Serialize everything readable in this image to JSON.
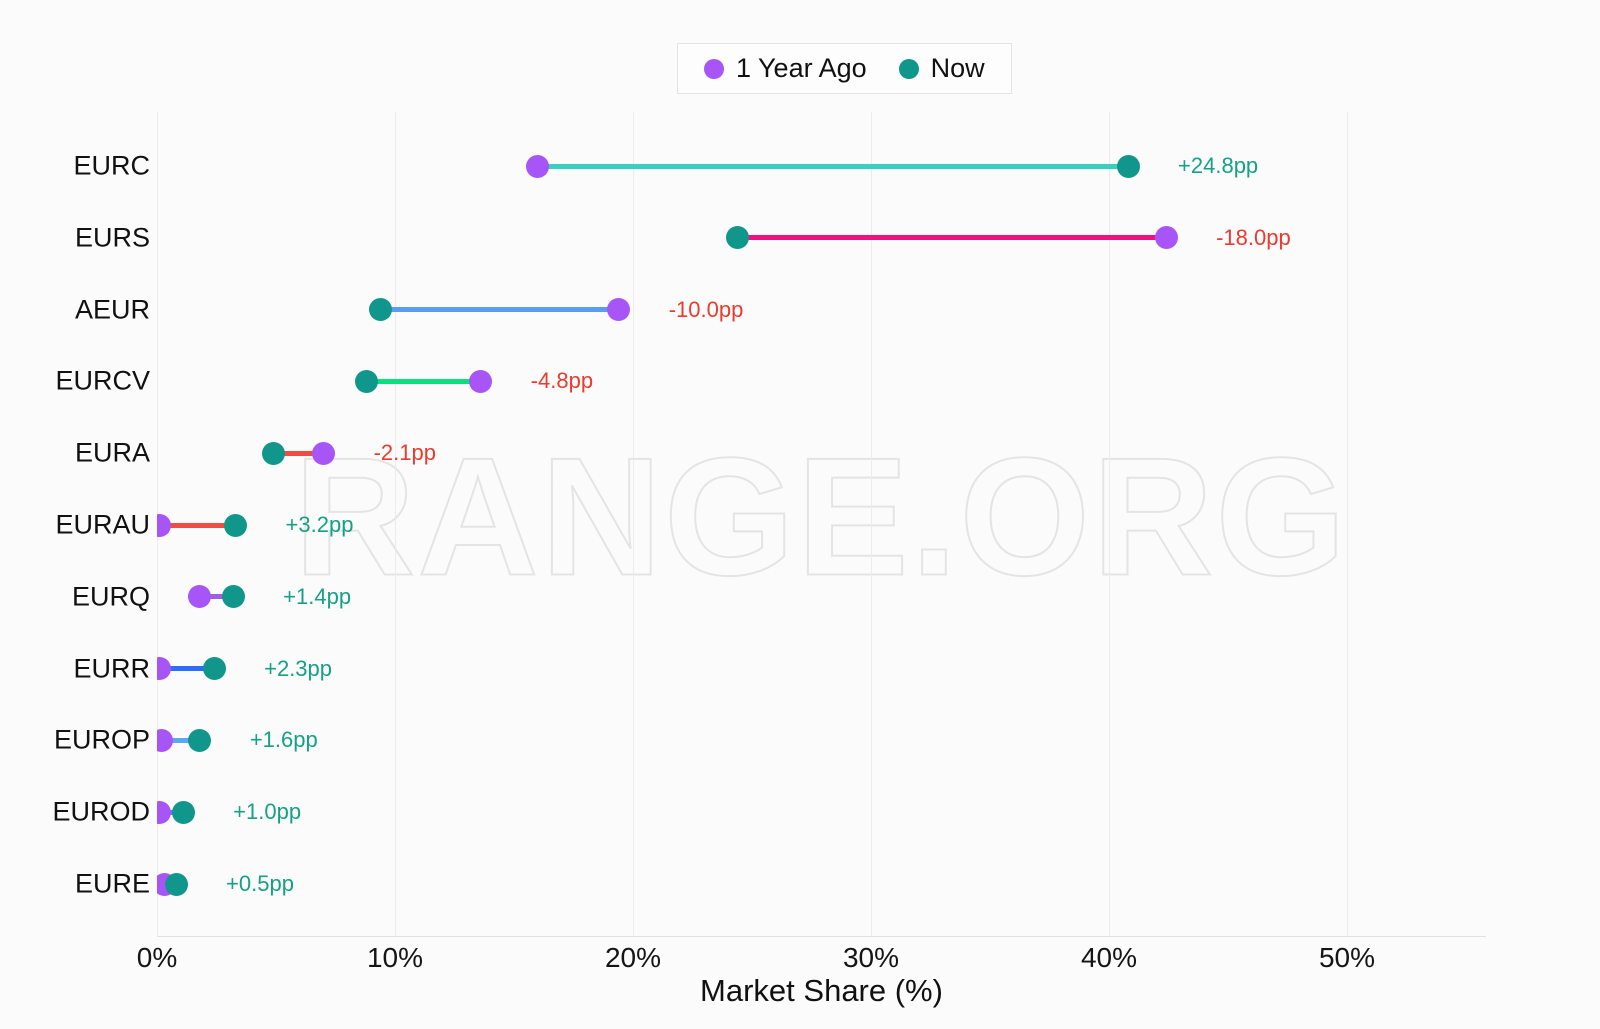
{
  "watermark": "RANGE.ORG",
  "chart_data": {
    "type": "dumbbell",
    "title": "",
    "xlabel": "Market Share (%)",
    "x_ticks": [
      "0%",
      "10%",
      "20%",
      "30%",
      "40%",
      "50%"
    ],
    "x_tick_values": [
      0,
      10,
      20,
      30,
      40,
      50
    ],
    "xlim": [
      0,
      55.8
    ],
    "grid": "vertical",
    "legend_position": "top-center",
    "series": [
      {
        "name": "1 Year Ago",
        "key": "year_ago",
        "color": "#a855f7"
      },
      {
        "name": "Now",
        "key": "now",
        "color": "#10968a"
      }
    ],
    "label_colors": {
      "positive": "#16a085",
      "negative": "#ea3b2e"
    },
    "rows": [
      {
        "label": "EURC",
        "year_ago": 16.0,
        "now": 40.8,
        "change": "+24.8pp",
        "direction": "positive",
        "connector_color": "#38d1c1"
      },
      {
        "label": "EURS",
        "year_ago": 42.4,
        "now": 24.4,
        "change": "-18.0pp",
        "direction": "negative",
        "connector_color": "#f01180"
      },
      {
        "label": "AEUR",
        "year_ago": 19.4,
        "now": 9.4,
        "change": "-10.0pp",
        "direction": "negative",
        "connector_color": "#5b9cf3"
      },
      {
        "label": "EURCV",
        "year_ago": 13.6,
        "now": 8.8,
        "change": "-4.8pp",
        "direction": "negative",
        "connector_color": "#0cdf7d"
      },
      {
        "label": "EURA",
        "year_ago": 7.0,
        "now": 4.9,
        "change": "-2.1pp",
        "direction": "negative",
        "connector_color": "#ef4c45"
      },
      {
        "label": "EURAU",
        "year_ago": 0.1,
        "now": 3.3,
        "change": "+3.2pp",
        "direction": "positive",
        "connector_color": "#ef4c45"
      },
      {
        "label": "EURQ",
        "year_ago": 1.8,
        "now": 3.2,
        "change": "+1.4pp",
        "direction": "positive",
        "connector_color": "#9b5fe0"
      },
      {
        "label": "EURR",
        "year_ago": 0.1,
        "now": 2.4,
        "change": "+2.3pp",
        "direction": "positive",
        "connector_color": "#2d6cf6"
      },
      {
        "label": "EUROP",
        "year_ago": 0.2,
        "now": 1.8,
        "change": "+1.6pp",
        "direction": "positive",
        "connector_color": "#5ba7f5"
      },
      {
        "label": "EUROD",
        "year_ago": 0.1,
        "now": 1.1,
        "change": "+1.0pp",
        "direction": "positive",
        "connector_color": "#5b7df0"
      },
      {
        "label": "EURE",
        "year_ago": 0.3,
        "now": 0.8,
        "change": "+0.5pp",
        "direction": "positive",
        "connector_color": "#8e5cf0"
      }
    ]
  }
}
